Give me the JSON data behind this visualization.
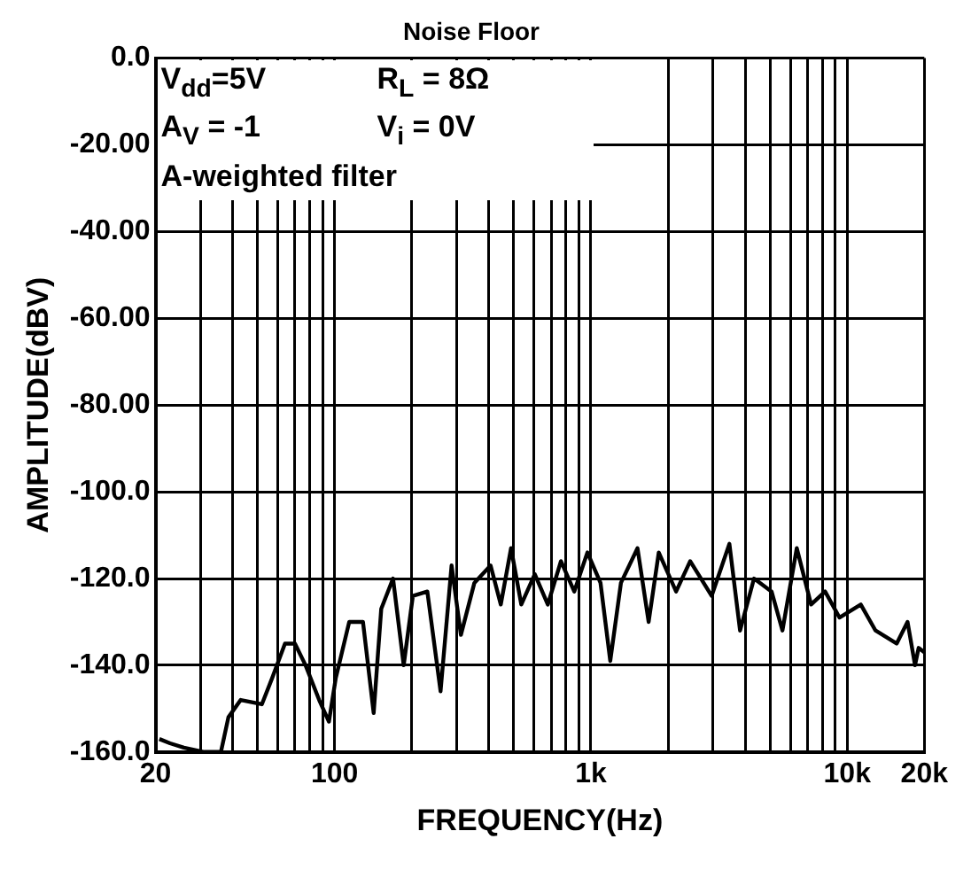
{
  "chart_data": {
    "type": "line",
    "title": "Noise Floor",
    "xlabel": "FREQUENCY(Hz)",
    "ylabel": "AMPLITUDE(dBV)",
    "annotations": [
      "V$_{dd}$=5V",
      "R$_{L}$ = 8Ω",
      "A$_{V}$ = -1",
      "V$_{i}$ = 0V",
      "A-weighted filter"
    ],
    "log": "x",
    "grid": true,
    "legend": false,
    "marker": "none",
    "line_style": "solid",
    "xlim": [
      20,
      20000
    ],
    "xticks": [
      {
        "value": 20,
        "label": "20"
      },
      {
        "value": 30,
        "label": null
      },
      {
        "value": 40,
        "label": null
      },
      {
        "value": 50,
        "label": null
      },
      {
        "value": 60,
        "label": null
      },
      {
        "value": 70,
        "label": null
      },
      {
        "value": 80,
        "label": null
      },
      {
        "value": 90,
        "label": null
      },
      {
        "value": 100,
        "label": "100"
      },
      {
        "value": 200,
        "label": null
      },
      {
        "value": 300,
        "label": null
      },
      {
        "value": 400,
        "label": null
      },
      {
        "value": 500,
        "label": null
      },
      {
        "value": 600,
        "label": null
      },
      {
        "value": 700,
        "label": null
      },
      {
        "value": 800,
        "label": null
      },
      {
        "value": 900,
        "label": null
      },
      {
        "value": 1000,
        "label": "1k"
      },
      {
        "value": 2000,
        "label": null
      },
      {
        "value": 3000,
        "label": null
      },
      {
        "value": 4000,
        "label": null
      },
      {
        "value": 5000,
        "label": null
      },
      {
        "value": 6000,
        "label": null
      },
      {
        "value": 7000,
        "label": null
      },
      {
        "value": 8000,
        "label": null
      },
      {
        "value": 9000,
        "label": null
      },
      {
        "value": 10000,
        "label": "10k"
      },
      {
        "value": 20000,
        "label": "20k"
      }
    ],
    "ylim": [
      -160,
      0
    ],
    "yticks": [
      {
        "value": 0,
        "label": "0.0"
      },
      {
        "value": -20,
        "label": "-20.00"
      },
      {
        "value": -40,
        "label": "-40.00"
      },
      {
        "value": -60,
        "label": "-60.00"
      },
      {
        "value": -80,
        "label": "-80.00"
      },
      {
        "value": -100,
        "label": "-100.0"
      },
      {
        "value": -120,
        "label": "-120.0"
      },
      {
        "value": -140,
        "label": "-140.0"
      },
      {
        "value": -160,
        "label": "-160.0"
      }
    ],
    "series": [
      {
        "color": "#000000",
        "x": [
          20.7,
          22.8,
          25.8,
          31,
          36,
          38.5,
          43,
          52,
          57,
          64,
          70,
          77,
          87,
          95,
          101,
          114,
          129,
          142,
          152,
          169,
          186,
          202,
          230,
          259,
          286,
          311,
          351,
          406,
          445,
          488,
          535,
          604,
          679,
          764,
          861,
          969,
          1090,
          1190,
          1310,
          1520,
          1680,
          1840,
          2150,
          2440,
          2960,
          3470,
          3820,
          4330,
          5070,
          5590,
          6360,
          7230,
          8200,
          9330,
          11300,
          12900,
          15600,
          17200,
          18400,
          19000,
          20000
        ],
        "values": [
          -157,
          -158,
          -159,
          -160,
          -160,
          -152,
          -148,
          -149,
          -143,
          -135,
          -135,
          -140,
          -148,
          -153,
          -143,
          -130,
          -130,
          -151,
          -127,
          -120,
          -140,
          -124,
          -123,
          -146,
          -117,
          -133,
          -121,
          -117,
          -126,
          -113,
          -126,
          -119,
          -126,
          -116,
          -123,
          -114,
          -121,
          -139,
          -121,
          -113,
          -130,
          -114,
          -123,
          -116,
          -124,
          -112,
          -132,
          -120,
          -123,
          -132,
          -113,
          -126,
          -123,
          -129,
          -126,
          -132,
          -135,
          -130,
          -140,
          -136,
          -137
        ]
      }
    ]
  }
}
